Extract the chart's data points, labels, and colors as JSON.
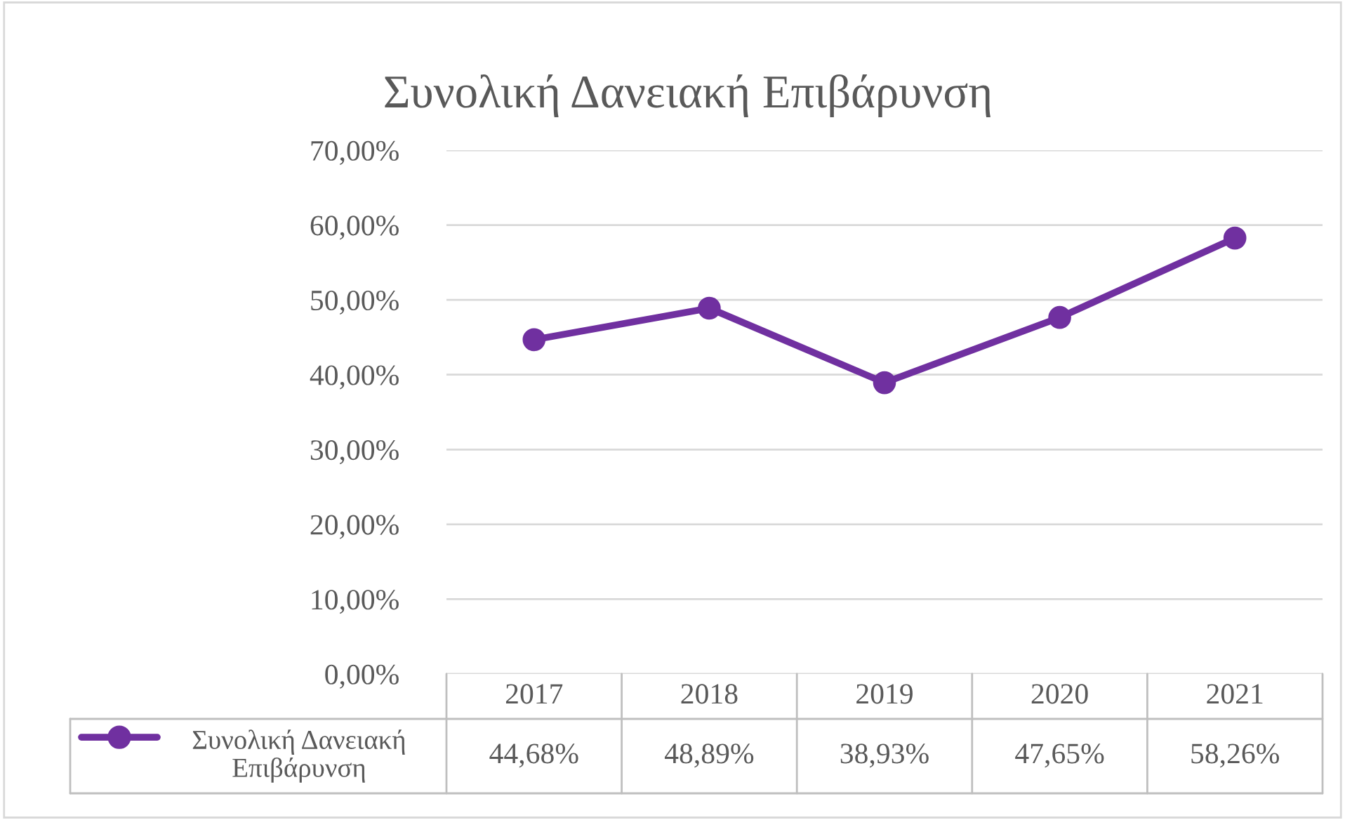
{
  "chart_data": {
    "type": "line",
    "title": "Συνολική Δανειακή Επιβάρυνση",
    "categories": [
      "2017",
      "2018",
      "2019",
      "2020",
      "2021"
    ],
    "series": [
      {
        "name": "Συνολική Δανειακή Επιβάρυνση",
        "color": "#7030a0",
        "values": [
          44.68,
          48.89,
          38.93,
          47.65,
          58.26
        ],
        "value_labels": [
          "44,68%",
          "48,89%",
          "38,93%",
          "47,65%",
          "58,26%"
        ]
      }
    ],
    "ylim": [
      0,
      70
    ],
    "yticks": [
      {
        "value": 0,
        "label": "0,00%"
      },
      {
        "value": 10,
        "label": "10,00%"
      },
      {
        "value": 20,
        "label": "20,00%"
      },
      {
        "value": 30,
        "label": "30,00%"
      },
      {
        "value": 40,
        "label": "40,00%"
      },
      {
        "value": 50,
        "label": "50,00%"
      },
      {
        "value": 60,
        "label": "60,00%"
      },
      {
        "value": 70,
        "label": "70,00%"
      }
    ],
    "grid": "y",
    "marker": "circle",
    "line_style": "solid",
    "legend": "bottom"
  }
}
